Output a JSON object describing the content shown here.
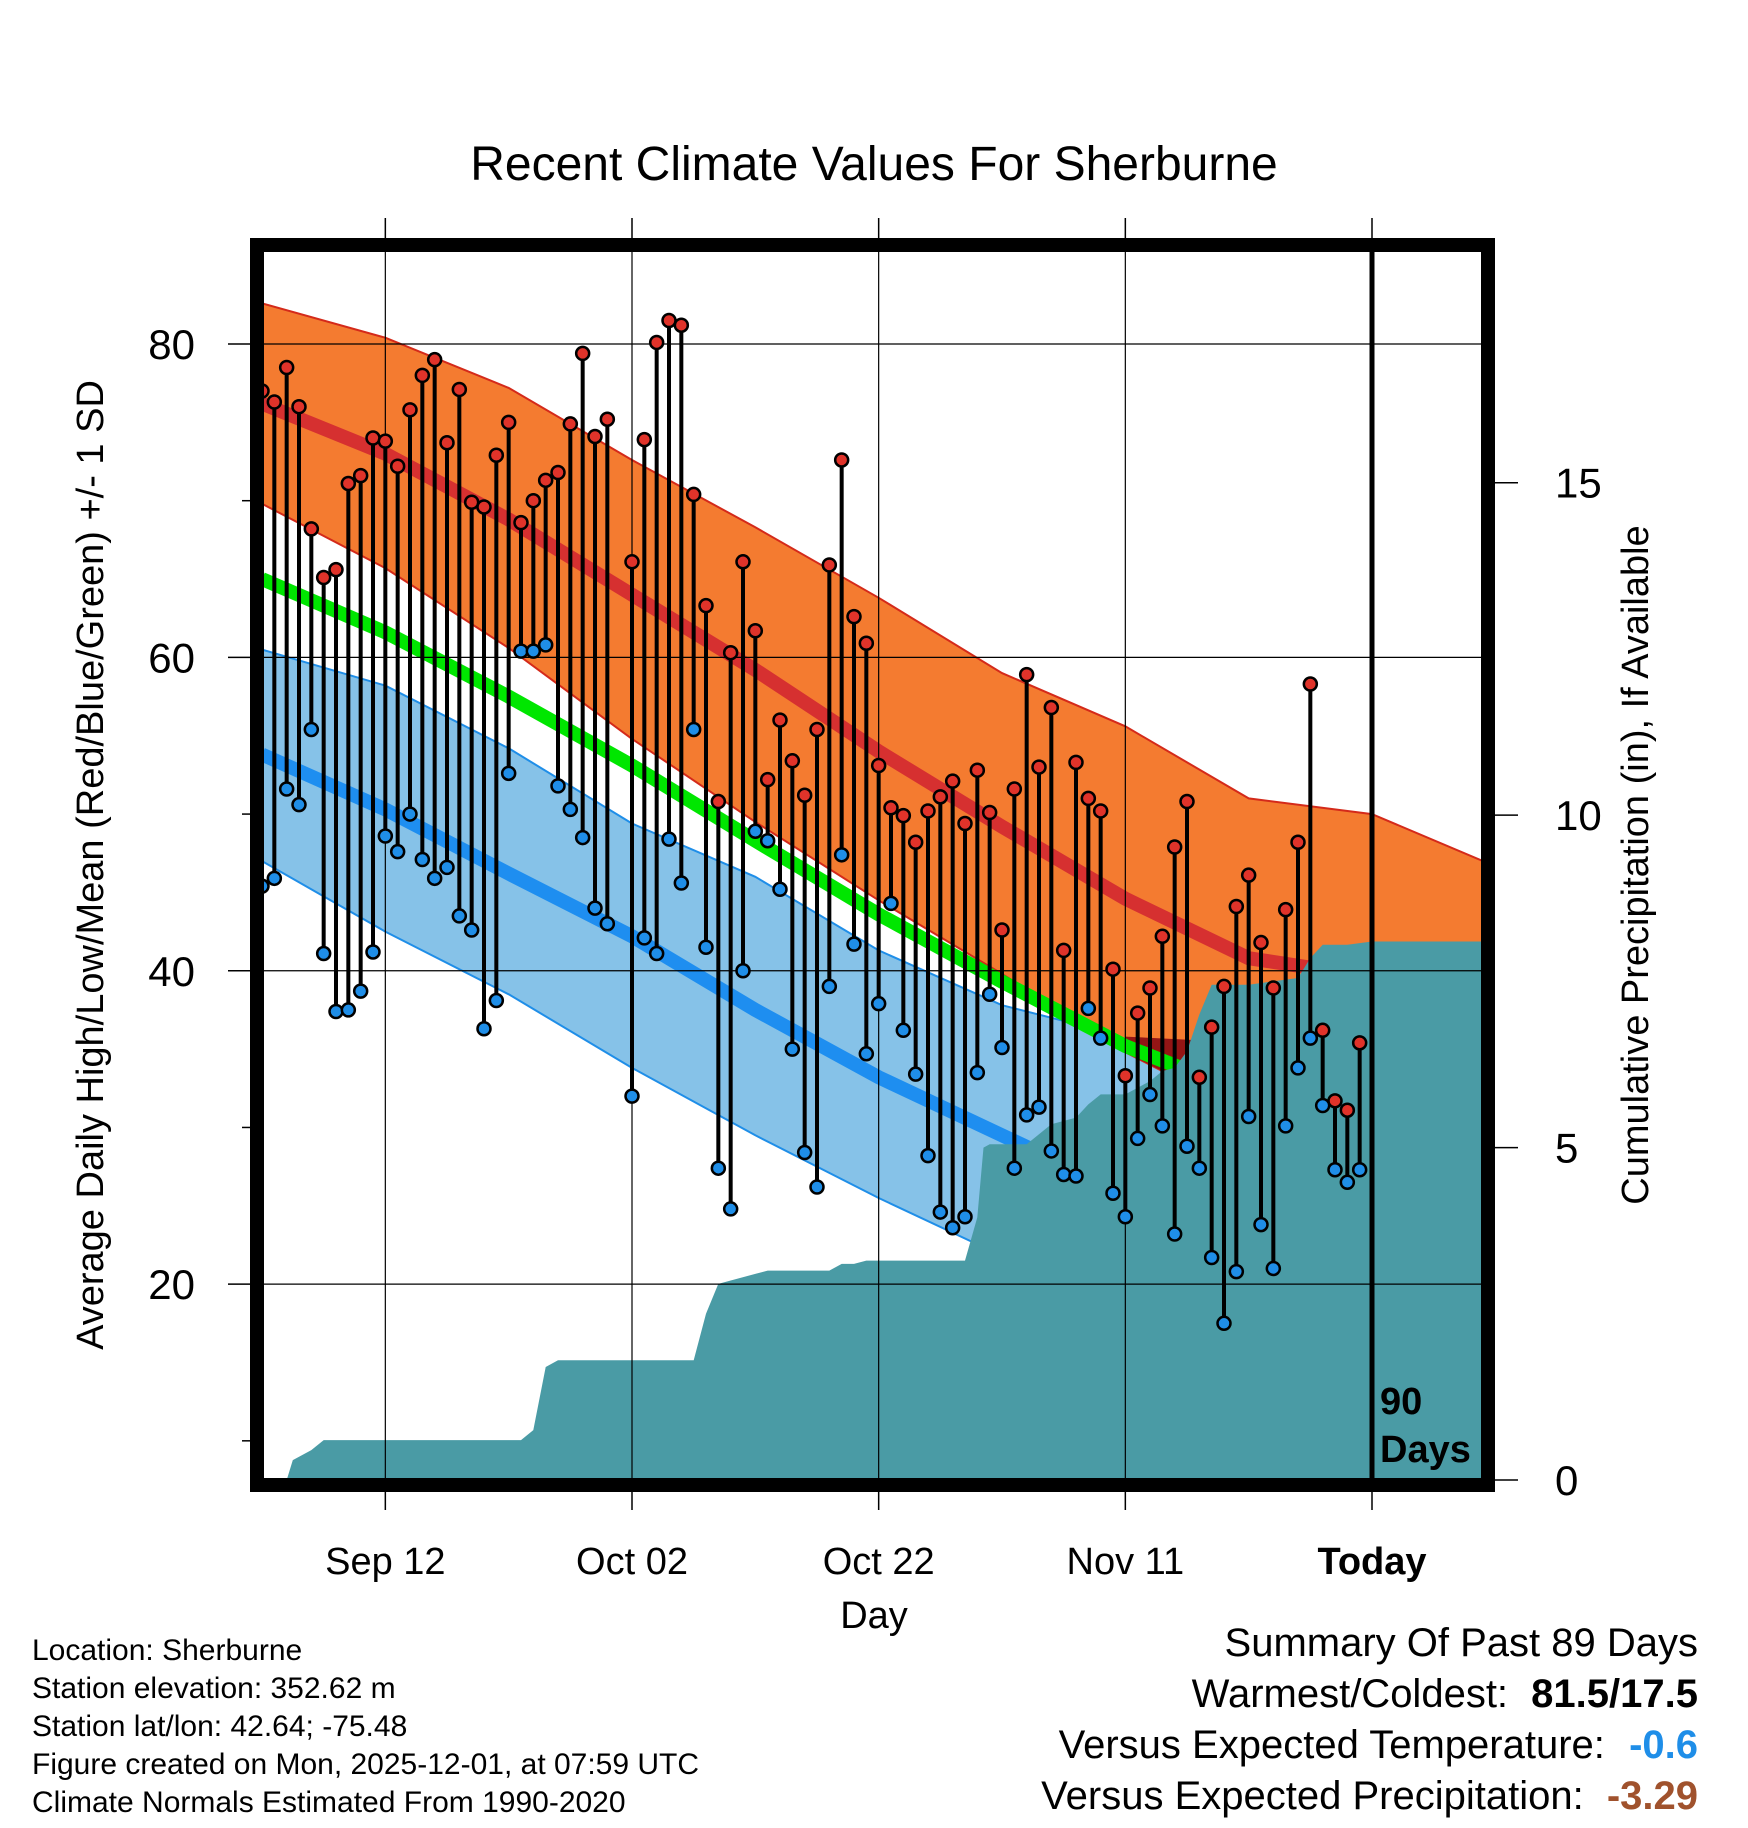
{
  "chart_data": {
    "type": "line",
    "title": "Recent Climate Values For Sherburne",
    "xlabel": "Day",
    "ylabel": "Average Daily High/Low/Mean (Red/Blue/Green) +/- 1 SD",
    "y2label": "Cumulative Precipitation (in), If Available",
    "xlim": [
      0,
      99
    ],
    "ylim": [
      7.5,
      86
    ],
    "y2lim": [
      0,
      18.5
    ],
    "x_ticks": [
      {
        "day": 10,
        "label": "Sep 12"
      },
      {
        "day": 30,
        "label": "Oct 02"
      },
      {
        "day": 50,
        "label": "Oct 22"
      },
      {
        "day": 70,
        "label": "Nov 11"
      },
      {
        "day": 90,
        "label": "Today"
      }
    ],
    "y_ticks": [
      20,
      40,
      60,
      80
    ],
    "y_minor_ticks": [
      10,
      30,
      50,
      70
    ],
    "y2_ticks": [
      0,
      5,
      10,
      15
    ],
    "window_label": "90 Days",
    "today_day": 90,
    "normals": {
      "days": [
        0,
        10,
        20,
        30,
        40,
        50,
        60,
        70,
        80,
        90,
        99
      ],
      "high_mean": [
        76.2,
        73.0,
        68.8,
        64.0,
        59.2,
        54.0,
        49.2,
        44.6,
        40.8,
        39.6,
        36.8
      ],
      "high_upper": [
        82.6,
        80.4,
        77.2,
        72.6,
        68.3,
        63.8,
        59.0,
        55.6,
        51.0,
        50.0,
        47.0
      ],
      "high_lower": [
        69.8,
        65.7,
        60.6,
        54.8,
        49.5,
        44.5,
        39.8,
        34.8,
        30.8,
        29.6,
        27.6
      ],
      "low_mean": [
        53.8,
        50.3,
        46.2,
        42.2,
        37.5,
        33.2,
        29.5,
        25.8,
        23.4,
        24.5,
        21.7
      ],
      "low_upper": [
        60.5,
        58.2,
        54.2,
        49.4,
        46.0,
        41.3,
        37.8,
        35.8,
        35.4,
        34.8,
        32.2
      ],
      "low_lower": [
        47.0,
        42.5,
        38.5,
        33.8,
        29.5,
        25.5,
        21.8,
        17.5,
        14.5,
        13.3,
        11.4
      ],
      "mean": [
        65.0,
        61.6,
        57.5,
        53.1,
        48.3,
        43.6,
        39.3,
        35.2,
        32.1,
        32.0,
        29.2
      ]
    },
    "series": [
      {
        "name": "Daily High",
        "color": "#e0332a",
        "values": [
          77,
          76.3,
          78.5,
          76,
          68.2,
          65.1,
          65.6,
          71.1,
          71.6,
          74,
          73.8,
          72.2,
          75.8,
          78,
          79,
          73.7,
          77.1,
          69.9,
          69.6,
          72.9,
          75,
          68.6,
          70,
          71.3,
          71.8,
          74.9,
          79.4,
          74.1,
          75.2,
          null,
          66.1,
          73.9,
          80.1,
          81.5,
          81.2,
          70.4,
          63.3,
          50.8,
          60.3,
          66.1,
          61.7,
          52.2,
          56,
          53.4,
          51.2,
          55.4,
          65.9,
          72.6,
          62.6,
          60.9,
          53.1,
          50.4,
          49.9,
          48.2,
          50.2,
          51.1,
          52.1,
          49.4,
          52.8,
          50.1,
          42.6,
          51.6,
          58.9,
          53,
          56.8,
          41.3,
          53.3,
          51,
          50.2,
          40.1,
          33.3,
          37.3,
          38.9,
          42.2,
          47.9,
          50.8,
          33.2,
          36.4,
          39,
          44.1,
          46.1,
          41.8,
          38.9,
          43.9,
          48.2,
          58.3,
          36.2,
          31.7,
          31.1,
          35.4
        ]
      },
      {
        "name": "Daily Low",
        "color": "#1f8ee8",
        "values": [
          45.4,
          45.9,
          51.6,
          50.6,
          55.4,
          41.1,
          37.4,
          37.5,
          38.7,
          41.2,
          48.6,
          47.6,
          50,
          47.1,
          45.9,
          46.6,
          43.5,
          42.6,
          36.3,
          38.1,
          52.6,
          60.4,
          60.4,
          60.8,
          51.8,
          50.3,
          48.5,
          44,
          43,
          null,
          32,
          42.1,
          41.1,
          48.4,
          45.6,
          55.4,
          41.5,
          27.4,
          24.8,
          40,
          48.9,
          48.3,
          45.2,
          35,
          28.4,
          26.2,
          39,
          47.4,
          41.7,
          34.7,
          37.9,
          44.3,
          36.2,
          33.4,
          28.2,
          24.6,
          23.6,
          24.3,
          33.5,
          38.5,
          35.1,
          27.4,
          30.8,
          31.3,
          28.5,
          27,
          26.9,
          37.6,
          35.7,
          25.8,
          24.3,
          29.3,
          32.1,
          30.1,
          23.2,
          28.8,
          27.4,
          21.7,
          17.5,
          20.8,
          30.7,
          23.8,
          21,
          30.1,
          33.8,
          35.7,
          31.4,
          27.3,
          26.5,
          27.3
        ]
      },
      {
        "name": "Cumulative Precipitation",
        "color": "#4a9ba5",
        "axis": "y2",
        "x": [
          0,
          2,
          2.5,
          4,
          5,
          21,
          22,
          23,
          24,
          35,
          36,
          37,
          38,
          40,
          41,
          46,
          47,
          48,
          49,
          57,
          58,
          58.5,
          59,
          62,
          63,
          64,
          66,
          67,
          68,
          70,
          72,
          73,
          74,
          75,
          76,
          77,
          80,
          84,
          85,
          86,
          88,
          90,
          99
        ],
        "values": [
          0,
          0,
          0.3,
          0.45,
          0.6,
          0.6,
          0.75,
          1.7,
          1.8,
          1.8,
          2.5,
          2.95,
          3.0,
          3.1,
          3.15,
          3.15,
          3.25,
          3.25,
          3.3,
          3.3,
          3.95,
          5.0,
          5.05,
          5.05,
          5.2,
          5.35,
          5.45,
          5.65,
          5.8,
          5.8,
          6.0,
          6.15,
          6.2,
          6.45,
          7.0,
          7.45,
          7.45,
          7.55,
          7.85,
          8.05,
          8.05,
          8.1,
          8.1
        ]
      }
    ]
  },
  "footer": {
    "location": "Location: Sherburne",
    "elevation": "Station elevation: 352.62 m",
    "latlon": "Station lat/lon: 42.64; -75.48",
    "created": "Figure created on Mon, 2025-12-01, at 07:59 UTC",
    "normals": "Climate Normals Estimated From 1990-2020"
  },
  "summary": {
    "title": "Summary Of Past 89 Days",
    "warmest_label": "Warmest/Coldest:",
    "warmest_value": "81.5/17.5",
    "temp_label": "Versus Expected Temperature:",
    "temp_value": "-0.6",
    "temp_color": "#1f8ee8",
    "precip_label": "Versus Expected Precipitation:",
    "precip_value": "-3.29",
    "precip_color": "#a0522d"
  },
  "colors": {
    "high_band": "#f47b30",
    "high_band_edge": "#d42a1a",
    "high_mean": "#d63030",
    "low_band": "#86c2e8",
    "low_band_edge": "#1f8ee8",
    "low_mean": "#1e8ef0",
    "mean_line": "#00e600",
    "overlap": "#931515",
    "precip": "#4a9ba5"
  }
}
